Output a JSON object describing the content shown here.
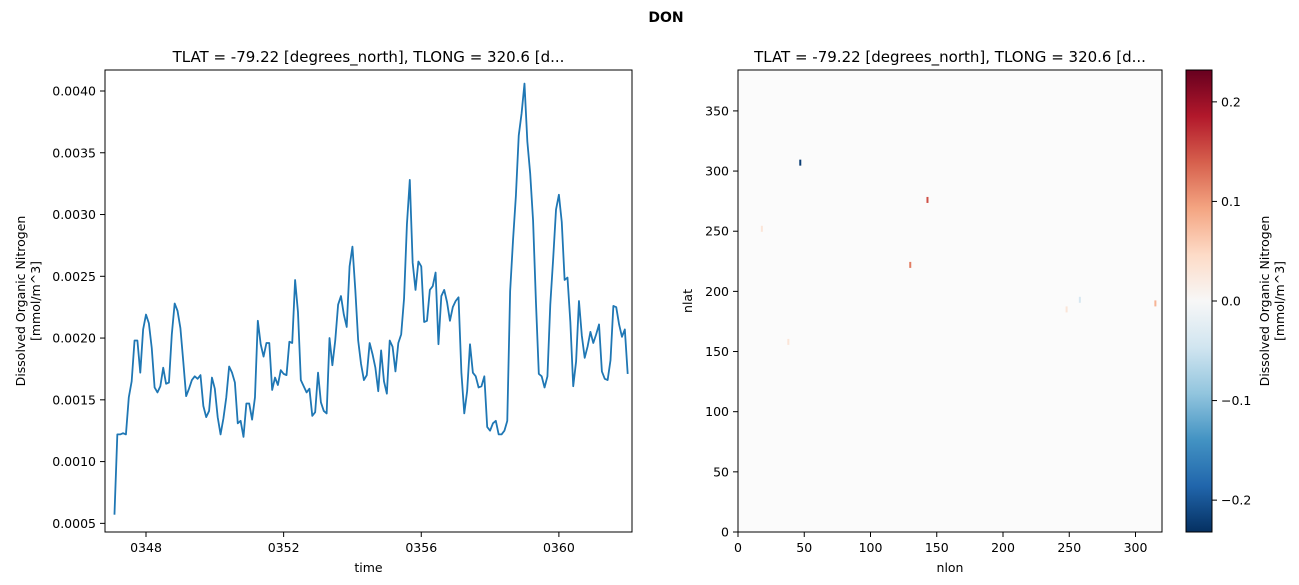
{
  "figure": {
    "suptitle": "DON"
  },
  "chart_data": [
    {
      "type": "line",
      "title": "TLAT = -79.22 [degrees_north], TLONG = 320.6 [d...",
      "xlabel": "time",
      "ylabel": "Dissolved Organic Nitrogen\n[mmol/m^3]",
      "x_ticks": [
        "0348",
        "0352",
        "0356",
        "0360"
      ],
      "y_ticks": [
        "0.0005",
        "0.0010",
        "0.0015",
        "0.0020",
        "0.0025",
        "0.0030",
        "0.0035",
        "0.0040"
      ],
      "y_tick_values": [
        0.0005,
        0.001,
        0.0015,
        0.002,
        0.0025,
        0.003,
        0.0035,
        0.004
      ],
      "ylim": [
        0.00043,
        0.00417
      ],
      "x_start_label": "0347-02",
      "x_tick_index": [
        11,
        59,
        107,
        155
      ],
      "xlim_index": [
        -3.3,
        180.5
      ],
      "line_color": "#1f77b4",
      "grid": false,
      "series": [
        {
          "values": [
            0.00057,
            0.00122,
            0.00122,
            0.00123,
            0.00122,
            0.00152,
            0.00165,
            0.00198,
            0.00198,
            0.00172,
            0.00207,
            0.00219,
            0.00212,
            0.00192,
            0.0016,
            0.00156,
            0.00161,
            0.00176,
            0.00163,
            0.00164,
            0.00203,
            0.00228,
            0.00222,
            0.00208,
            0.00181,
            0.00153,
            0.00159,
            0.00166,
            0.00169,
            0.00167,
            0.0017,
            0.00145,
            0.00136,
            0.00141,
            0.00168,
            0.00159,
            0.00136,
            0.00122,
            0.00135,
            0.00152,
            0.00177,
            0.00172,
            0.00164,
            0.00131,
            0.00133,
            0.0012,
            0.00147,
            0.00147,
            0.00134,
            0.00152,
            0.00214,
            0.00195,
            0.00185,
            0.00196,
            0.00196,
            0.00158,
            0.00168,
            0.00162,
            0.00174,
            0.00171,
            0.0017,
            0.00197,
            0.00196,
            0.00247,
            0.00221,
            0.00166,
            0.00161,
            0.00156,
            0.00159,
            0.00137,
            0.0014,
            0.00172,
            0.00148,
            0.00141,
            0.00139,
            0.002,
            0.00178,
            0.00198,
            0.00227,
            0.00234,
            0.00219,
            0.00209,
            0.00258,
            0.00274,
            0.00239,
            0.00198,
            0.00179,
            0.00166,
            0.0017,
            0.00196,
            0.00187,
            0.00176,
            0.00157,
            0.0019,
            0.00165,
            0.00155,
            0.00198,
            0.00193,
            0.00173,
            0.00196,
            0.00203,
            0.00232,
            0.00292,
            0.00328,
            0.00261,
            0.00239,
            0.00262,
            0.00258,
            0.00213,
            0.00214,
            0.00239,
            0.00242,
            0.00253,
            0.00195,
            0.00234,
            0.00239,
            0.00229,
            0.00214,
            0.00225,
            0.0023,
            0.00233,
            0.00172,
            0.00139,
            0.00157,
            0.00195,
            0.00172,
            0.00169,
            0.0016,
            0.00161,
            0.00169,
            0.00128,
            0.00125,
            0.00131,
            0.00133,
            0.00122,
            0.00122,
            0.00125,
            0.00133,
            0.00238,
            0.00279,
            0.00315,
            0.00364,
            0.00382,
            0.00406,
            0.00359,
            0.00333,
            0.00295,
            0.00229,
            0.00171,
            0.00169,
            0.0016,
            0.00169,
            0.00227,
            0.00264,
            0.00304,
            0.00316,
            0.00294,
            0.00247,
            0.00249,
            0.00213,
            0.00161,
            0.00181,
            0.0023,
            0.00202,
            0.00184,
            0.00193,
            0.00205,
            0.00196,
            0.00203,
            0.00211,
            0.00173,
            0.00167,
            0.00166,
            0.00182,
            0.00226,
            0.00225,
            0.00211,
            0.00201,
            0.00207,
            0.00171
          ]
        }
      ]
    },
    {
      "type": "heatmap",
      "title": "TLAT = -79.22 [degrees_north], TLONG = 320.6 [d...",
      "xlabel": "nlon",
      "ylabel": "nlat",
      "x_ticks": [
        "0",
        "50",
        "100",
        "150",
        "200",
        "250",
        "300"
      ],
      "x_tick_values": [
        0,
        50,
        100,
        150,
        200,
        250,
        300
      ],
      "y_ticks": [
        "0",
        "50",
        "100",
        "150",
        "200",
        "250",
        "300",
        "350"
      ],
      "y_tick_values": [
        0,
        50,
        100,
        150,
        200,
        250,
        300,
        350
      ],
      "xlim": [
        0,
        320
      ],
      "ylim": [
        0,
        384
      ],
      "colormap": "RdBu_r",
      "colorbar": {
        "label": "Dissolved Organic Nitrogen\n[mmol/m^3]",
        "ticks": [
          "0.2",
          "0.1",
          "0.0",
          "−0.1",
          "−0.2"
        ],
        "tick_values": [
          0.2,
          0.1,
          0.0,
          -0.1,
          -0.2
        ],
        "vmin": -0.232,
        "vmax": 0.232,
        "colors": [
          "#67001f",
          "#b2182b",
          "#d6604d",
          "#f4a582",
          "#fddbc7",
          "#f7f7f7",
          "#d1e5f0",
          "#92c5de",
          "#4393c3",
          "#2166ac",
          "#053061"
        ]
      },
      "features": [
        {
          "kind": "ocean",
          "value": 0.0
        },
        {
          "kind": "anomaly",
          "nlon": 47,
          "nlat": 307,
          "value": -0.22
        },
        {
          "kind": "anomaly",
          "nlon": 143,
          "nlat": 276,
          "value": 0.15
        },
        {
          "kind": "anomaly",
          "nlon": 130,
          "nlat": 222,
          "value": 0.12
        },
        {
          "kind": "anomaly",
          "nlon": 248,
          "nlat": 185,
          "value": 0.03
        },
        {
          "kind": "anomaly",
          "nlon": 258,
          "nlat": 193,
          "value": -0.04
        },
        {
          "kind": "anomaly",
          "nlon": 315,
          "nlat": 190,
          "value": 0.08
        },
        {
          "kind": "anomaly",
          "nlon": 18,
          "nlat": 252,
          "value": 0.03
        },
        {
          "kind": "anomaly",
          "nlon": 38,
          "nlat": 158,
          "value": 0.03
        }
      ]
    }
  ]
}
